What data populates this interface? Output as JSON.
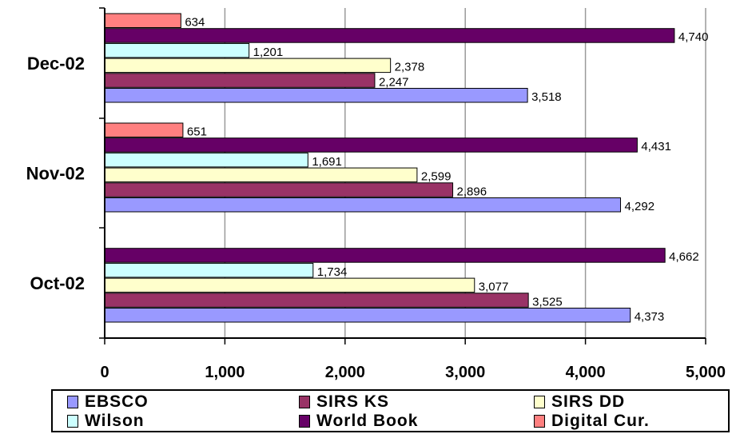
{
  "chart_data": {
    "type": "bar",
    "orientation": "horizontal",
    "categories": [
      "Oct-02",
      "Nov-02",
      "Dec-02"
    ],
    "series": [
      {
        "name": "EBSCO",
        "color": "#9999ff",
        "values": [
          4373,
          4292,
          3518
        ]
      },
      {
        "name": "SIRS KS",
        "color": "#993366",
        "values": [
          3525,
          2896,
          2247
        ]
      },
      {
        "name": "SIRS DD",
        "color": "#ffffcc",
        "values": [
          3077,
          2599,
          2378
        ]
      },
      {
        "name": "Wilson",
        "color": "#ccffff",
        "values": [
          1734,
          1691,
          1201
        ]
      },
      {
        "name": "World Book",
        "color": "#660066",
        "values": [
          4662,
          4431,
          4740
        ]
      },
      {
        "name": "Digital Cur.",
        "color": "#ff8080",
        "values": [
          null,
          651,
          634
        ]
      }
    ],
    "data_labels": {
      "EBSCO": [
        "4,373",
        "4,292",
        "3,518"
      ],
      "SIRS KS": [
        "3,525",
        "2,896",
        "2,247"
      ],
      "SIRS DD": [
        "3,077",
        "2,599",
        "2,378"
      ],
      "Wilson": [
        "1,734",
        "1,691",
        "1,201"
      ],
      "World Book": [
        "4,662",
        "4,431",
        "4,740"
      ],
      "Digital Cur.": [
        "",
        "651",
        "634"
      ]
    },
    "x_ticks": [
      "0",
      "1,000",
      "2,000",
      "3,000",
      "4,000",
      "5,000"
    ],
    "xlim": [
      0,
      5000
    ],
    "grid": "vertical",
    "legend_position": "bottom",
    "title": "",
    "xlabel": "",
    "ylabel": ""
  }
}
